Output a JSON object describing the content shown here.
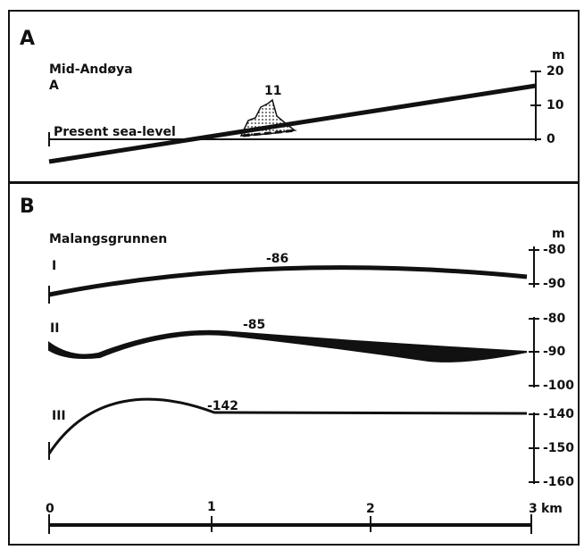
{
  "panel_a": {
    "label": "A",
    "site": "Mid-Andøya",
    "profile": "A",
    "unit": "m",
    "ticks": [
      "20",
      "10",
      "0"
    ],
    "peak": "11",
    "sea_level": "Present sea-level"
  },
  "panel_b": {
    "label": "B",
    "site": "Malangsgrunnen",
    "unit": "m",
    "profiles": [
      {
        "name": "I",
        "depth": "-86",
        "ticks": [
          "-80",
          "-90"
        ]
      },
      {
        "name": "II",
        "depth": "-85",
        "ticks": [
          "-80",
          "-90",
          "-100"
        ]
      },
      {
        "name": "III",
        "depth": "-142",
        "ticks": [
          "-140",
          "-150",
          "-160"
        ]
      }
    ],
    "scale": [
      "0",
      "1",
      "2",
      "3"
    ],
    "scale_unit": "km"
  }
}
